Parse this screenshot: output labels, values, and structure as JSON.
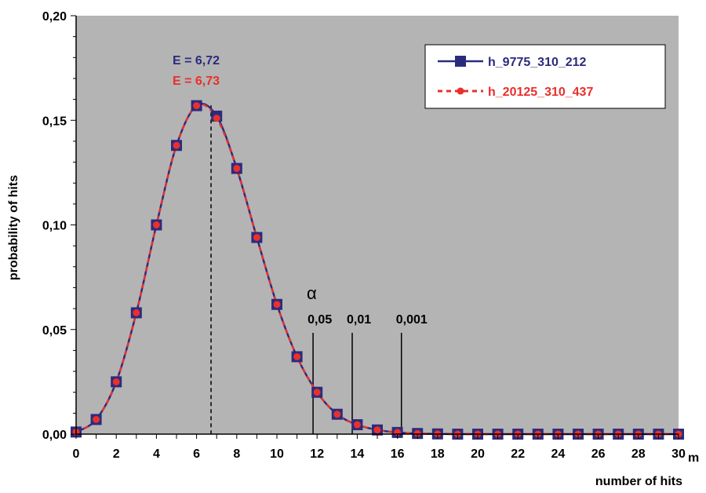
{
  "chart_data": {
    "type": "line",
    "title": "",
    "xlabel": "number of hits",
    "x_unit_label": "m",
    "ylabel": "probability of hits",
    "xlim": [
      0,
      30
    ],
    "ylim": [
      0,
      0.2
    ],
    "x_ticks": [
      0,
      2,
      4,
      6,
      8,
      10,
      12,
      14,
      16,
      18,
      20,
      22,
      24,
      26,
      28,
      30
    ],
    "y_ticks": [
      {
        "value": 0.0,
        "label": "0,00"
      },
      {
        "value": 0.05,
        "label": "0,05"
      },
      {
        "value": 0.1,
        "label": "0,10"
      },
      {
        "value": 0.15,
        "label": "0,15"
      },
      {
        "value": 0.2,
        "label": "0,20"
      }
    ],
    "grid": false,
    "background": "#b4b4b4",
    "legend_position": "top-right",
    "x": [
      0,
      1,
      2,
      3,
      4,
      5,
      6,
      7,
      8,
      9,
      10,
      11,
      12,
      13,
      14,
      15,
      16,
      17,
      18,
      19,
      20,
      21,
      22,
      23,
      24,
      25,
      26,
      27,
      28,
      29,
      30
    ],
    "series": [
      {
        "name": "h_9775_310_212",
        "color": "#2b2b7e",
        "style": "solid line, square markers",
        "values": [
          0.001,
          0.007,
          0.025,
          0.058,
          0.1,
          0.138,
          0.157,
          0.152,
          0.127,
          0.094,
          0.062,
          0.037,
          0.02,
          0.0095,
          0.0045,
          0.002,
          0.0008,
          0.0003,
          0.0001,
          0,
          0,
          0,
          0,
          0,
          0,
          0,
          0,
          0,
          0,
          0,
          0
        ]
      },
      {
        "name": "h_20125_310_437",
        "color": "#e8302c",
        "style": "dashed line, circle markers",
        "values": [
          0.001,
          0.007,
          0.025,
          0.058,
          0.1,
          0.138,
          0.157,
          0.151,
          0.127,
          0.094,
          0.062,
          0.037,
          0.02,
          0.0095,
          0.0045,
          0.002,
          0.0008,
          0.0003,
          0.0001,
          0,
          0,
          0,
          0,
          0,
          0,
          0,
          0,
          0,
          0,
          0,
          0
        ]
      }
    ],
    "annotations": {
      "expectations": [
        {
          "label": "E = 6,72",
          "color": "#2b2b7e"
        },
        {
          "label": "E = 6,73",
          "color": "#e8302c"
        }
      ],
      "expectation_line_x": 6.72,
      "alpha_symbol": "α",
      "alpha_lines": [
        {
          "x": 11.8,
          "label": "0,05"
        },
        {
          "x": 13.75,
          "label": "0,01"
        },
        {
          "x": 16.2,
          "label": "0,001"
        }
      ]
    }
  }
}
